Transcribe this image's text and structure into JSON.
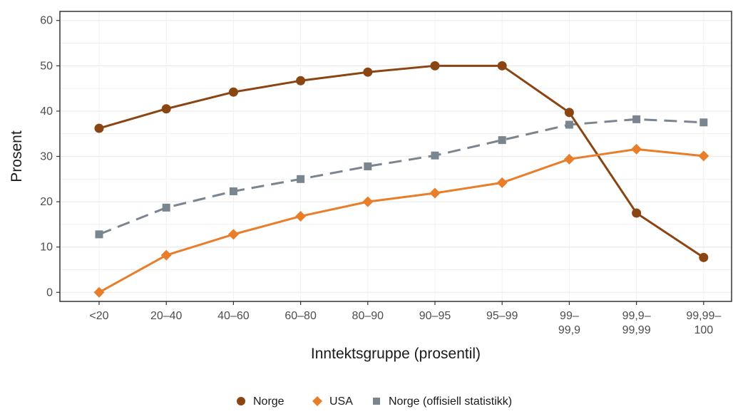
{
  "chart_data": {
    "type": "line",
    "xlabel": "Inntektsgruppe (prosentil)",
    "ylabel": "Prosent",
    "categories": [
      [
        "<20"
      ],
      [
        "20–40"
      ],
      [
        "40–60"
      ],
      [
        "60–80"
      ],
      [
        "80–90"
      ],
      [
        "90–95"
      ],
      [
        "95–99"
      ],
      [
        "99–",
        "99,9"
      ],
      [
        "99,9–",
        "99,99"
      ],
      [
        "99,99–",
        "100"
      ]
    ],
    "ylim": [
      -2,
      62
    ],
    "yticks": [
      0,
      10,
      20,
      30,
      40,
      50,
      60
    ],
    "grid": true,
    "legend_position": "bottom",
    "series": [
      {
        "name": "Norge",
        "color": "#8B4513",
        "marker": "circle",
        "dash": "solid",
        "values": [
          36.2,
          40.5,
          44.2,
          46.7,
          48.6,
          50.0,
          50.0,
          39.7,
          17.5,
          7.7
        ]
      },
      {
        "name": "USA",
        "color": "#E87D2A",
        "marker": "diamond",
        "dash": "solid",
        "values": [
          0.0,
          8.2,
          12.8,
          16.8,
          20.0,
          21.9,
          24.2,
          29.4,
          31.6,
          30.1
        ]
      },
      {
        "name": "Norge (offisiell statistikk)",
        "color": "#7A8590",
        "marker": "square",
        "dash": "dashed",
        "values": [
          12.8,
          18.7,
          22.3,
          25.0,
          27.8,
          30.2,
          33.6,
          37.0,
          38.2,
          37.5
        ]
      }
    ]
  }
}
